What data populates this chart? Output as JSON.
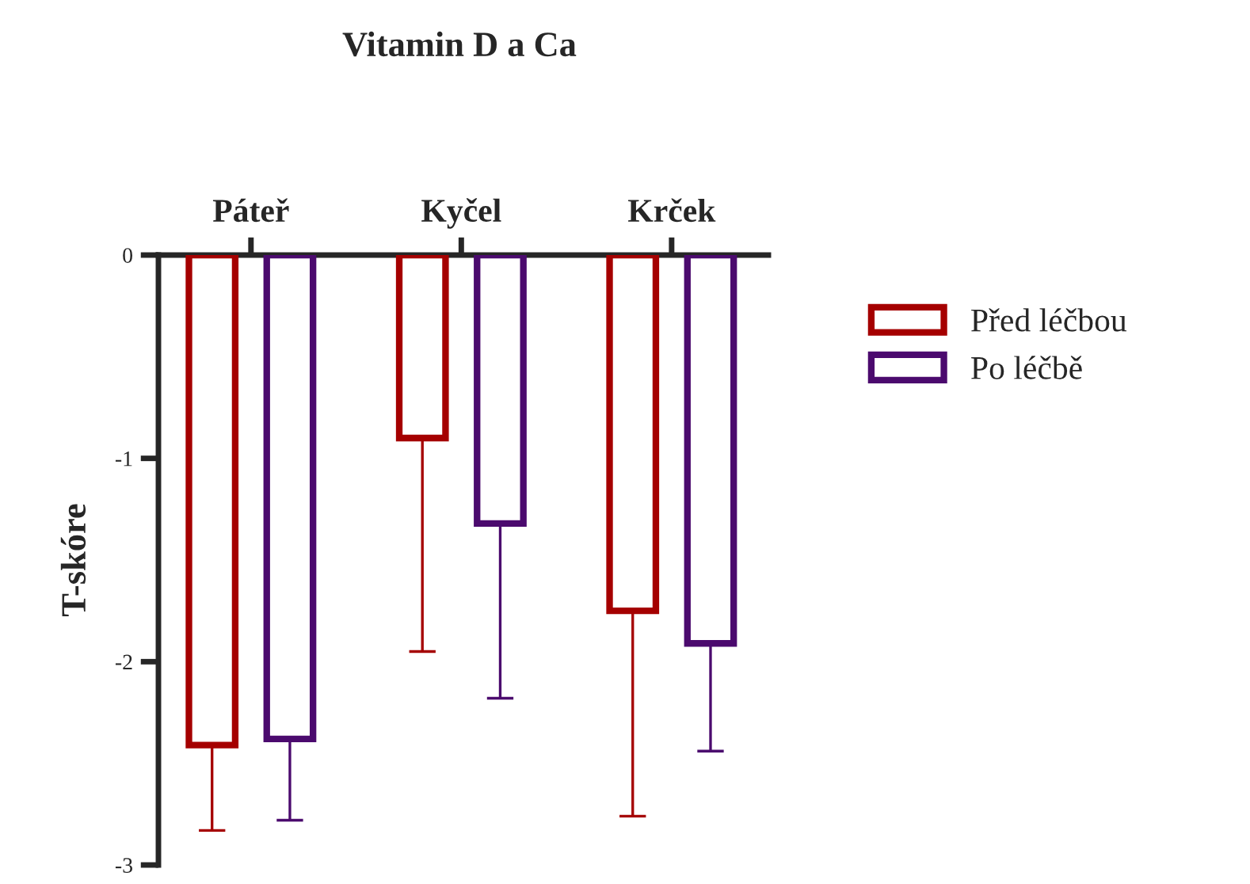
{
  "chart_data": {
    "type": "bar",
    "title": "Vitamin D a Ca",
    "ylabel": "T-skóre",
    "categories": [
      "Páteř",
      "Kyčel",
      "Krček"
    ],
    "series": [
      {
        "name": "Před léčbou",
        "color": "#a50000",
        "values": [
          -2.41,
          -0.9,
          -1.75
        ],
        "errors": [
          [
            -2.83,
            -2.41
          ],
          [
            -1.95,
            -0.9
          ],
          [
            -2.76,
            -1.75
          ]
        ]
      },
      {
        "name": "Po léčbě",
        "color": "#4b0a6e",
        "values": [
          -2.38,
          -1.32,
          -1.91
        ],
        "errors": [
          [
            -2.78,
            -2.38
          ],
          [
            -2.18,
            -1.32
          ],
          [
            -2.44,
            -1.91
          ]
        ]
      }
    ],
    "ylim": [
      -3,
      0
    ],
    "yticks": [
      -3,
      -2,
      -1,
      0
    ],
    "grid": false,
    "legend": "right"
  }
}
